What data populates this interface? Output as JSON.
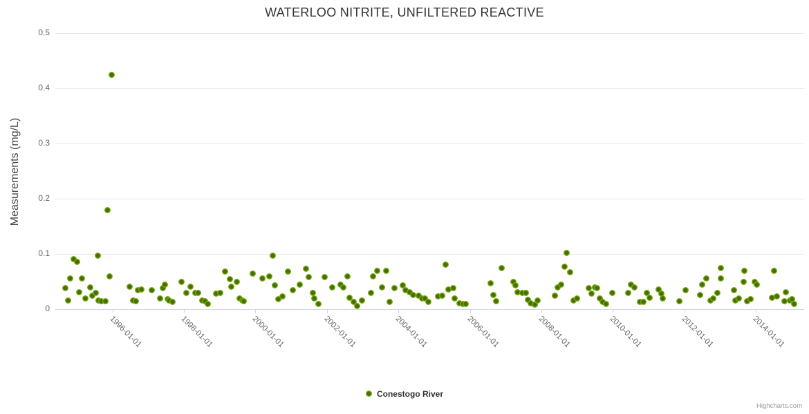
{
  "title": "WATERLOO NITRITE, UNFILTERED REACTIVE",
  "legend": {
    "label": "Conestogo River"
  },
  "credits": "Highcharts.com",
  "colors": {
    "marker_center": "#456d05",
    "marker_ring": "#7db00e",
    "gridline": "#e6e6e6",
    "axis_line": "#ccd6eb",
    "title_text": "#333333",
    "axis_label_text": "#666666",
    "credits_text": "#999999"
  },
  "chart_data": {
    "type": "scatter",
    "title": "WATERLOO NITRITE, UNFILTERED REACTIVE",
    "xlabel": "",
    "ylabel": "Measurements (mg/L)",
    "xlim": [
      1994.4,
      2015.35
    ],
    "ylim": [
      0,
      0.5
    ],
    "grid": true,
    "legend_position": "bottom-center",
    "x_ticks": [
      {
        "label": "1996-01-01",
        "year": 1996
      },
      {
        "label": "1998-01-01",
        "year": 1998
      },
      {
        "label": "2000-01-01",
        "year": 2000
      },
      {
        "label": "2002-01-01",
        "year": 2002
      },
      {
        "label": "2004-01-01",
        "year": 2004
      },
      {
        "label": "2006-01-01",
        "year": 2006
      },
      {
        "label": "2008-01-01",
        "year": 2008
      },
      {
        "label": "2010-01-01",
        "year": 2010
      },
      {
        "label": "2012-01-01",
        "year": 2012
      },
      {
        "label": "2014-01-01",
        "year": 2014
      }
    ],
    "y_ticks": [
      {
        "label": "0",
        "value": 0
      },
      {
        "label": "0.1",
        "value": 0.1
      },
      {
        "label": "0.2",
        "value": 0.2
      },
      {
        "label": "0.3",
        "value": 0.3
      },
      {
        "label": "0.4",
        "value": 0.4
      },
      {
        "label": "0.5",
        "value": 0.5
      }
    ],
    "series": [
      {
        "name": "Conestogo River",
        "points": [
          [
            1994.69,
            0.038
          ],
          [
            1994.76,
            0.016
          ],
          [
            1994.82,
            0.056
          ],
          [
            1994.92,
            0.091
          ],
          [
            1995.01,
            0.086
          ],
          [
            1995.07,
            0.031
          ],
          [
            1995.15,
            0.056
          ],
          [
            1995.25,
            0.02
          ],
          [
            1995.38,
            0.04
          ],
          [
            1995.43,
            0.025
          ],
          [
            1995.54,
            0.03
          ],
          [
            1995.59,
            0.097
          ],
          [
            1995.6,
            0.016
          ],
          [
            1995.69,
            0.014
          ],
          [
            1995.81,
            0.015
          ],
          [
            1995.86,
            0.18
          ],
          [
            1995.92,
            0.059
          ],
          [
            1995.98,
            0.425
          ],
          [
            1996.48,
            0.041
          ],
          [
            1996.58,
            0.016
          ],
          [
            1996.66,
            0.014
          ],
          [
            1996.72,
            0.035
          ],
          [
            1996.81,
            0.036
          ],
          [
            1997.1,
            0.034
          ],
          [
            1997.33,
            0.02
          ],
          [
            1997.41,
            0.038
          ],
          [
            1997.47,
            0.045
          ],
          [
            1997.55,
            0.018
          ],
          [
            1997.58,
            0.016
          ],
          [
            1997.68,
            0.013
          ],
          [
            1997.93,
            0.049
          ],
          [
            1998.07,
            0.03
          ],
          [
            1998.18,
            0.041
          ],
          [
            1998.32,
            0.029
          ],
          [
            1998.4,
            0.029
          ],
          [
            1998.51,
            0.016
          ],
          [
            1998.59,
            0.015
          ],
          [
            1998.67,
            0.009
          ],
          [
            1998.9,
            0.028
          ],
          [
            1999.01,
            0.029
          ],
          [
            1999.15,
            0.068
          ],
          [
            1999.29,
            0.054
          ],
          [
            1999.32,
            0.041
          ],
          [
            1999.48,
            0.049
          ],
          [
            1999.56,
            0.02
          ],
          [
            1999.63,
            0.016
          ],
          [
            1999.67,
            0.014
          ],
          [
            1999.92,
            0.064
          ],
          [
            2000.19,
            0.056
          ],
          [
            2000.39,
            0.059
          ],
          [
            2000.48,
            0.097
          ],
          [
            2000.54,
            0.043
          ],
          [
            2000.64,
            0.018
          ],
          [
            2000.75,
            0.023
          ],
          [
            2000.91,
            0.068
          ],
          [
            2001.04,
            0.034
          ],
          [
            2001.24,
            0.045
          ],
          [
            2001.41,
            0.073
          ],
          [
            2001.49,
            0.058
          ],
          [
            2001.6,
            0.029
          ],
          [
            2001.64,
            0.02
          ],
          [
            2001.76,
            0.009
          ],
          [
            2001.93,
            0.058
          ],
          [
            2002.15,
            0.04
          ],
          [
            2002.38,
            0.045
          ],
          [
            2002.45,
            0.039
          ],
          [
            2002.57,
            0.059
          ],
          [
            2002.63,
            0.021
          ],
          [
            2002.74,
            0.013
          ],
          [
            2002.84,
            0.006
          ],
          [
            2002.98,
            0.016
          ],
          [
            2003.23,
            0.029
          ],
          [
            2003.29,
            0.059
          ],
          [
            2003.4,
            0.069
          ],
          [
            2003.54,
            0.039
          ],
          [
            2003.65,
            0.069
          ],
          [
            2003.75,
            0.013
          ],
          [
            2003.89,
            0.038
          ],
          [
            2004.12,
            0.043
          ],
          [
            2004.19,
            0.034
          ],
          [
            2004.31,
            0.031
          ],
          [
            2004.41,
            0.026
          ],
          [
            2004.56,
            0.025
          ],
          [
            2004.66,
            0.02
          ],
          [
            2004.74,
            0.02
          ],
          [
            2004.83,
            0.013
          ],
          [
            2005.1,
            0.023
          ],
          [
            2005.22,
            0.025
          ],
          [
            2005.32,
            0.081
          ],
          [
            2005.39,
            0.036
          ],
          [
            2005.53,
            0.038
          ],
          [
            2005.58,
            0.019
          ],
          [
            2005.7,
            0.011
          ],
          [
            2005.8,
            0.009
          ],
          [
            2005.88,
            0.01
          ],
          [
            2006.57,
            0.047
          ],
          [
            2006.65,
            0.026
          ],
          [
            2006.74,
            0.014
          ],
          [
            2006.88,
            0.075
          ],
          [
            2007.21,
            0.05
          ],
          [
            2007.28,
            0.043
          ],
          [
            2007.33,
            0.031
          ],
          [
            2007.46,
            0.03
          ],
          [
            2007.56,
            0.029
          ],
          [
            2007.63,
            0.017
          ],
          [
            2007.69,
            0.011
          ],
          [
            2007.81,
            0.008
          ],
          [
            2007.89,
            0.016
          ],
          [
            2008.37,
            0.025
          ],
          [
            2008.46,
            0.039
          ],
          [
            2008.56,
            0.045
          ],
          [
            2008.64,
            0.077
          ],
          [
            2008.7,
            0.102
          ],
          [
            2008.81,
            0.067
          ],
          [
            2008.89,
            0.016
          ],
          [
            2008.99,
            0.02
          ],
          [
            2009.33,
            0.038
          ],
          [
            2009.41,
            0.028
          ],
          [
            2009.49,
            0.04
          ],
          [
            2009.55,
            0.038
          ],
          [
            2009.64,
            0.019
          ],
          [
            2009.72,
            0.013
          ],
          [
            2009.8,
            0.01
          ],
          [
            2009.99,
            0.029
          ],
          [
            2010.42,
            0.03
          ],
          [
            2010.51,
            0.044
          ],
          [
            2010.61,
            0.039
          ],
          [
            2010.76,
            0.013
          ],
          [
            2010.86,
            0.013
          ],
          [
            2010.94,
            0.029
          ],
          [
            2011.03,
            0.021
          ],
          [
            2011.28,
            0.036
          ],
          [
            2011.36,
            0.028
          ],
          [
            2011.4,
            0.02
          ],
          [
            2011.85,
            0.014
          ],
          [
            2012.04,
            0.035
          ],
          [
            2012.43,
            0.026
          ],
          [
            2012.5,
            0.044
          ],
          [
            2012.62,
            0.056
          ],
          [
            2012.72,
            0.016
          ],
          [
            2012.81,
            0.02
          ],
          [
            2012.93,
            0.029
          ],
          [
            2013.01,
            0.074
          ],
          [
            2013.02,
            0.056
          ],
          [
            2013.39,
            0.035
          ],
          [
            2013.43,
            0.016
          ],
          [
            2013.53,
            0.02
          ],
          [
            2013.65,
            0.05
          ],
          [
            2013.67,
            0.069
          ],
          [
            2013.76,
            0.014
          ],
          [
            2013.86,
            0.018
          ],
          [
            2013.96,
            0.05
          ],
          [
            2014.02,
            0.045
          ],
          [
            2014.46,
            0.021
          ],
          [
            2014.5,
            0.07
          ],
          [
            2014.58,
            0.023
          ],
          [
            2014.79,
            0.014
          ],
          [
            2014.83,
            0.031
          ],
          [
            2014.95,
            0.016
          ],
          [
            2015.02,
            0.018
          ],
          [
            2015.06,
            0.01
          ]
        ]
      }
    ]
  }
}
